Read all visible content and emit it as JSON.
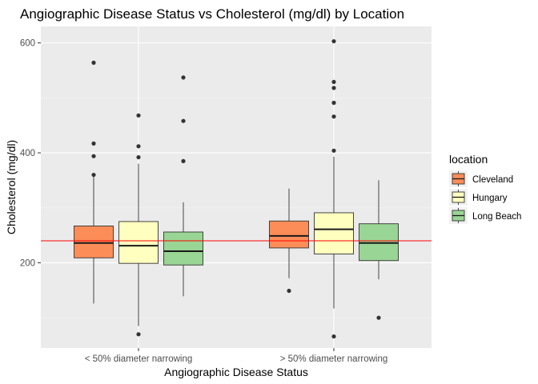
{
  "chart_data": {
    "type": "boxplot",
    "title": "Angiographic Disease Status vs Cholesterol (mg/dl) by Location",
    "xlabel": "Angiographic Disease Status",
    "ylabel": "Cholesterol (mg/dl)",
    "categories": [
      "< 50% diameter narrowing",
      "> 50% diameter narrowing"
    ],
    "ylim": [
      45,
      630
    ],
    "yticks": [
      200,
      400,
      600
    ],
    "grid": true,
    "legend": {
      "title": "location",
      "position": "right"
    },
    "reference_line": {
      "y": 240,
      "color": "#ff0000"
    },
    "series": [
      {
        "name": "Cleveland",
        "color": "#fc8d59",
        "boxes": [
          {
            "min": 126,
            "q1": 209,
            "median": 236,
            "q3": 267,
            "max": 356,
            "outliers": [
              360,
              394,
              417,
              564
            ]
          },
          {
            "min": 172,
            "q1": 227,
            "median": 249,
            "q3": 276,
            "max": 335,
            "outliers": [
              149
            ]
          }
        ]
      },
      {
        "name": "Hungary",
        "color": "#ffffbf",
        "boxes": [
          {
            "min": 85,
            "q1": 199,
            "median": 231,
            "q3": 275,
            "max": 380,
            "outliers": [
              70,
              392,
              412,
              468
            ]
          },
          {
            "min": 117,
            "q1": 216,
            "median": 261,
            "q3": 291,
            "max": 393,
            "outliers": [
              66,
              404,
              466,
              491,
              518,
              529,
              603
            ]
          }
        ]
      },
      {
        "name": "Long Beach",
        "color": "#99d594",
        "boxes": [
          {
            "min": 139,
            "q1": 196,
            "median": 221,
            "q3": 256,
            "max": 310,
            "outliers": [
              385,
              458,
              537
            ]
          },
          {
            "min": 170,
            "q1": 204,
            "median": 236,
            "q3": 271,
            "max": 350,
            "outliers": [
              100
            ]
          }
        ]
      }
    ]
  }
}
